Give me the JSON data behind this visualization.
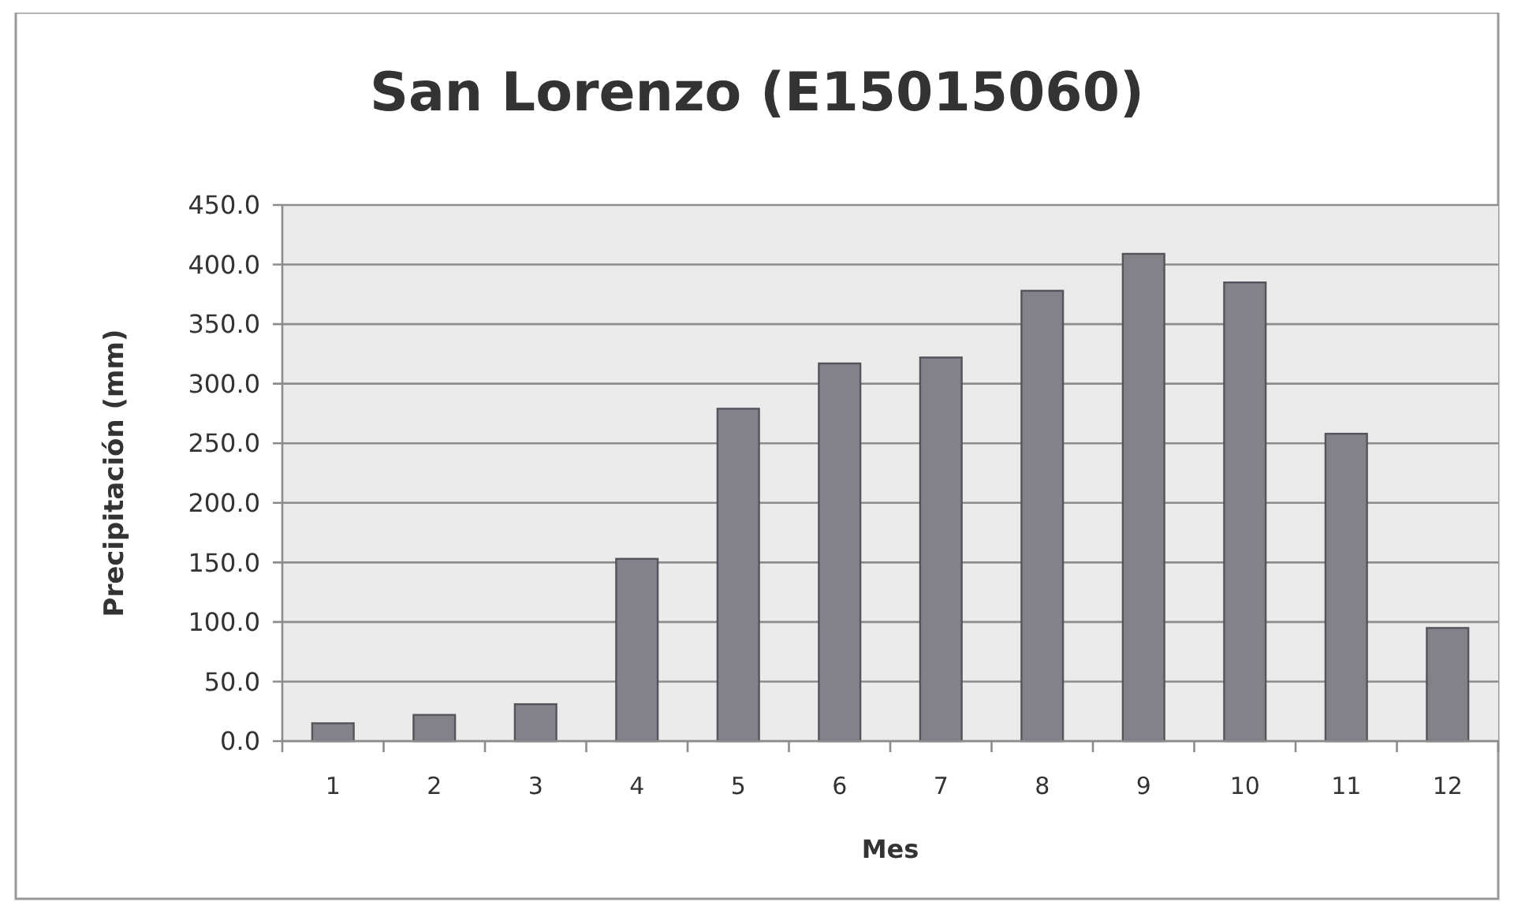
{
  "chart_data": {
    "type": "bar",
    "title": "San Lorenzo (E15015060)",
    "xlabel": "Mes",
    "ylabel": "Precipitación (mm)",
    "categories": [
      "1",
      "2",
      "3",
      "4",
      "5",
      "6",
      "7",
      "8",
      "9",
      "10",
      "11",
      "12"
    ],
    "values": [
      15,
      22,
      31,
      153,
      279,
      317,
      322,
      378,
      409,
      385,
      258,
      95
    ],
    "color": "#838289",
    "ylim": [
      0,
      450
    ],
    "yticks": [
      {
        "value": 0,
        "label": "0.0"
      },
      {
        "value": 50,
        "label": "50.0"
      },
      {
        "value": 100,
        "label": "100.0"
      },
      {
        "value": 150,
        "label": "150.0"
      },
      {
        "value": 200,
        "label": "200.0"
      },
      {
        "value": 250,
        "label": "250.0"
      },
      {
        "value": 300,
        "label": "300.0"
      },
      {
        "value": 350,
        "label": "350.0"
      },
      {
        "value": 400,
        "label": "400.0"
      },
      {
        "value": 450,
        "label": "450.0"
      }
    ],
    "grid": "y"
  }
}
